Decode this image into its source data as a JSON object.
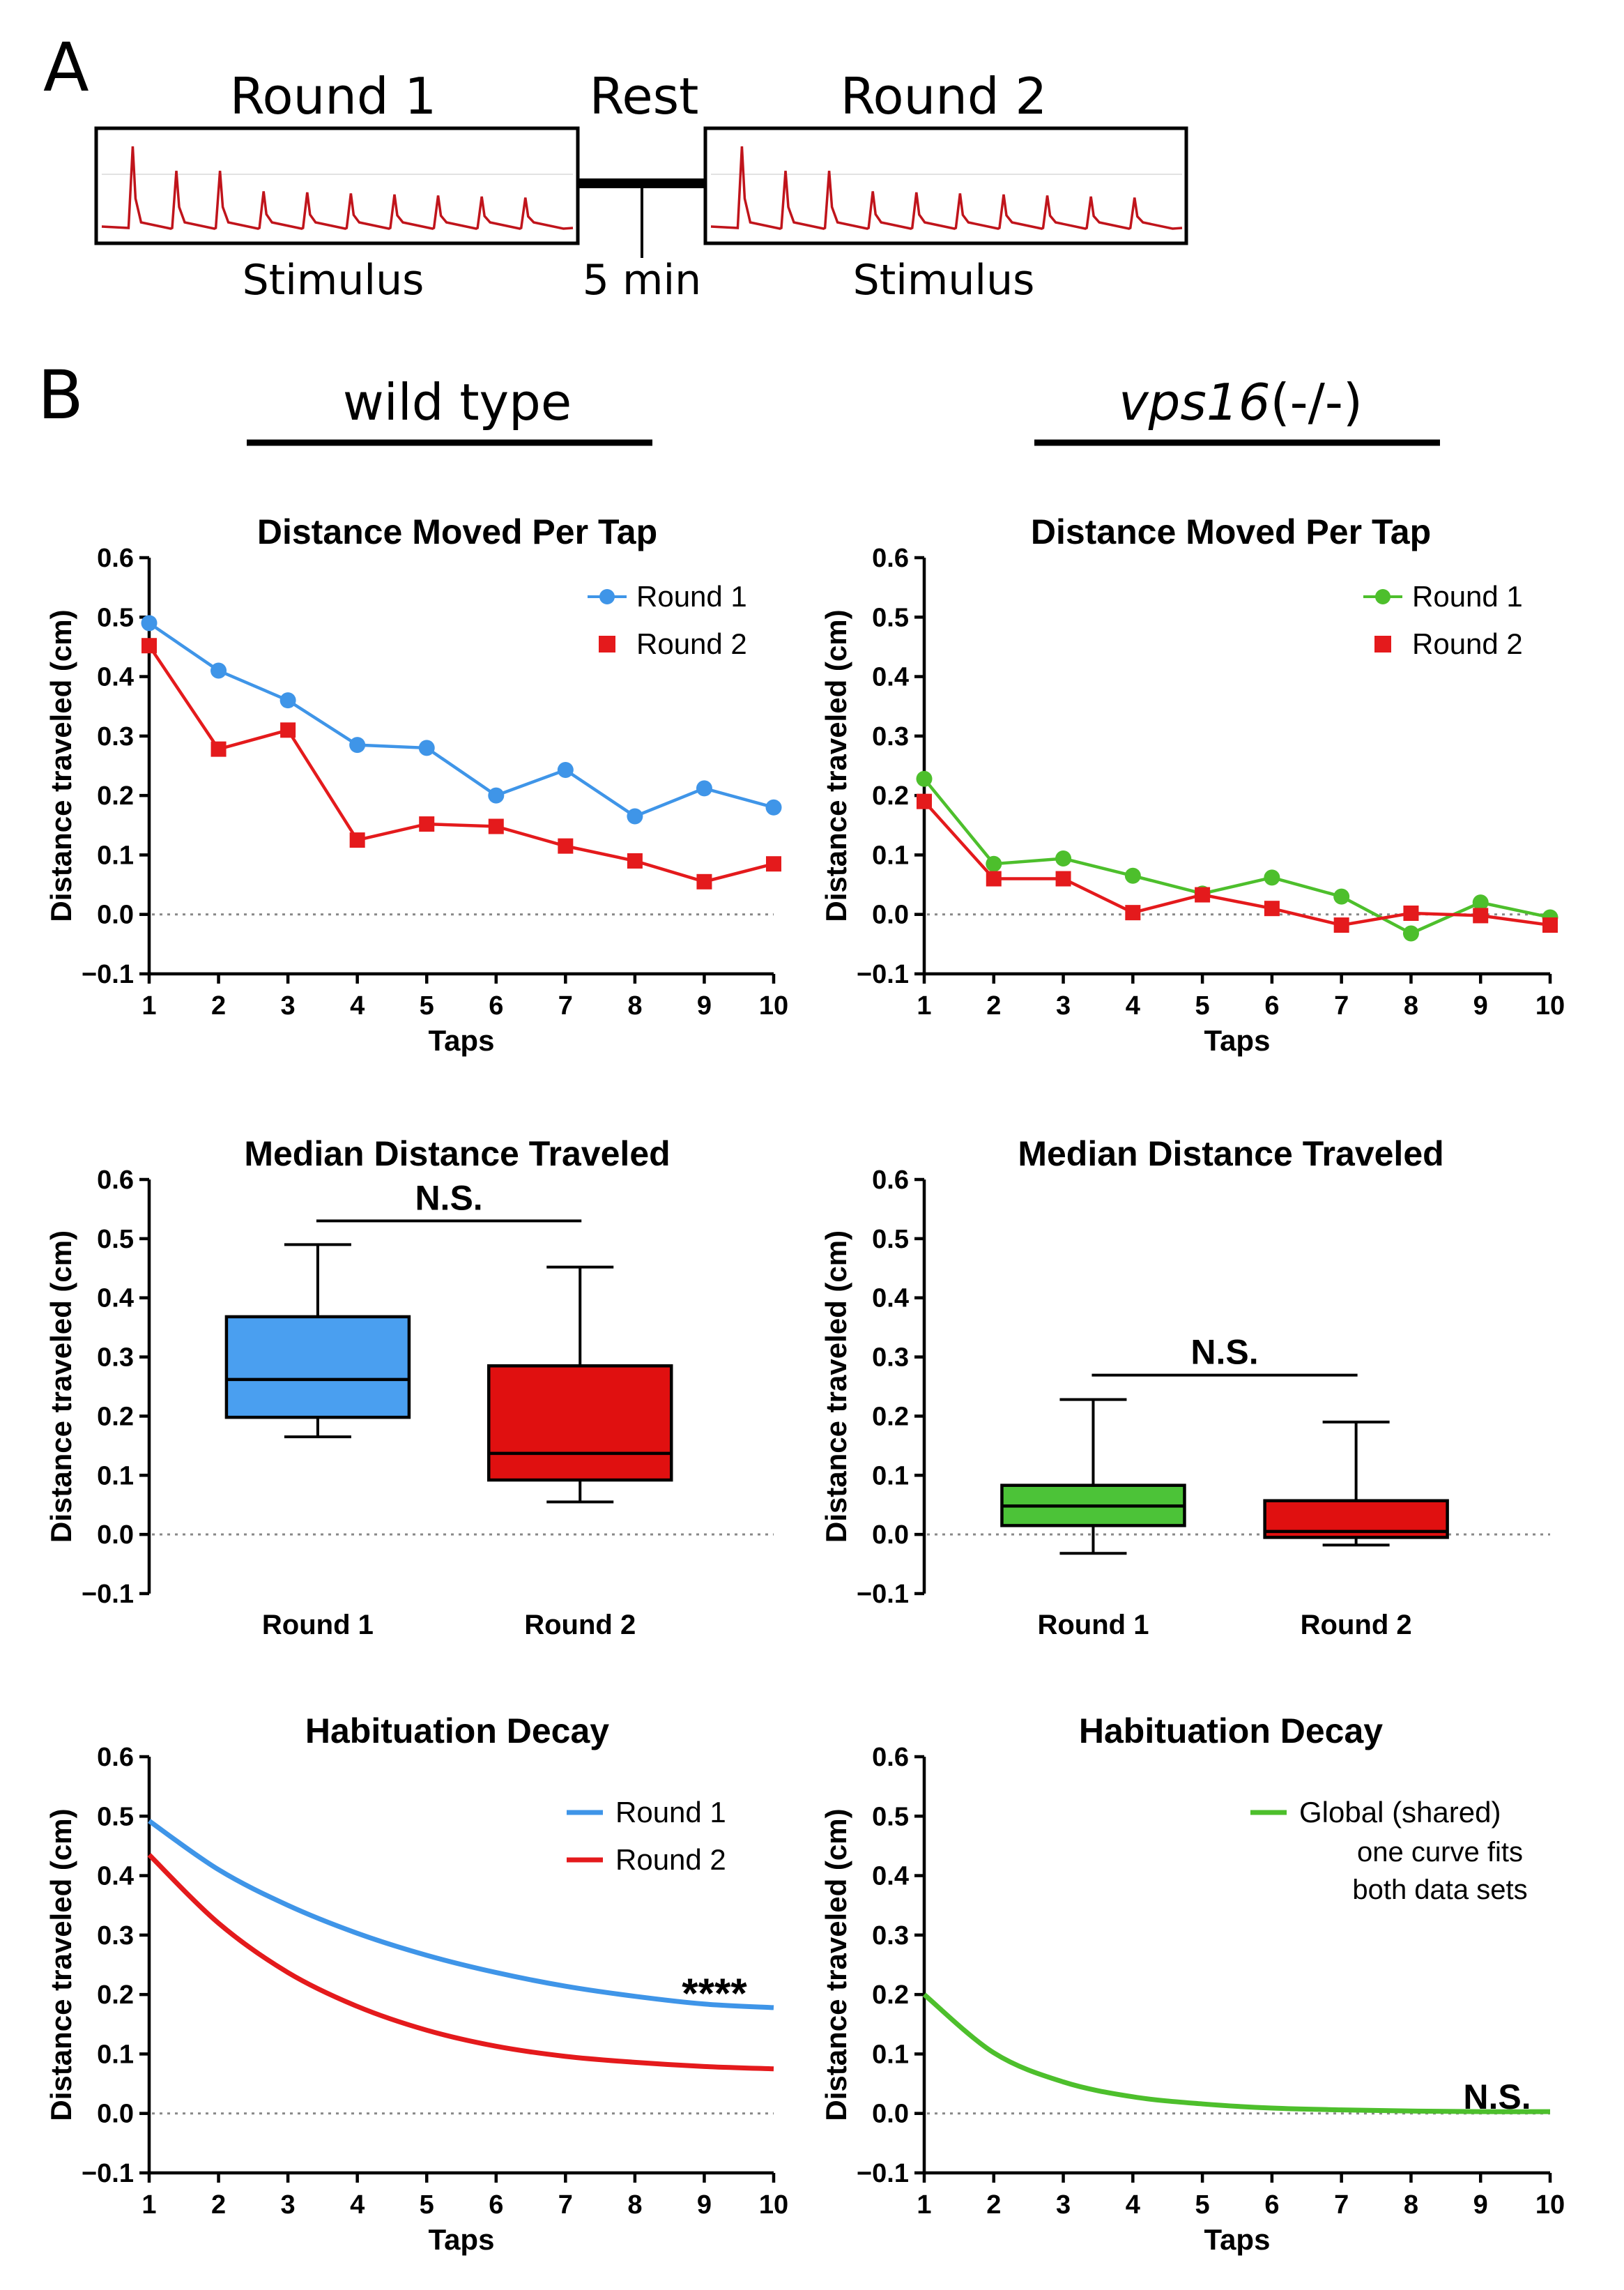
{
  "panel_a": {
    "label": "A",
    "round1_label": "Round 1",
    "rest_label": "Rest",
    "round2_label": "Round 2",
    "stimulus1_label": "Stimulus",
    "rest_duration": "5 min",
    "stimulus2_label": "Stimulus",
    "trace_color": "#c0141b"
  },
  "panel_b": {
    "label": "B",
    "left_header": "wild type",
    "right_header_gene": "vps16",
    "right_header_suffix": "(-/-)"
  },
  "colors": {
    "wt_round1": "#3f95e8",
    "round2": "#e41a1c",
    "mut_round1": "#4dbf2c",
    "box_wt_r1": "#4a9ff0",
    "box_r2": "#e01010",
    "box_mut_r1": "#4cc338"
  },
  "chart_data": [
    {
      "id": "wt_line",
      "type": "line",
      "title": "Distance Moved Per Tap",
      "xlabel": "Taps",
      "ylabel": "Distance traveled (cm)",
      "ylim": [
        -0.1,
        0.6
      ],
      "yticks": [
        "0.6",
        "0.5",
        "0.4",
        "0.3",
        "0.2",
        "0.1",
        "0.0",
        "−0.1"
      ],
      "x": [
        1,
        2,
        3,
        4,
        5,
        6,
        7,
        8,
        9,
        10
      ],
      "series": [
        {
          "name": "Round 1",
          "marker": "circle",
          "values": [
            0.49,
            0.41,
            0.36,
            0.285,
            0.28,
            0.2,
            0.243,
            0.165,
            0.212,
            0.18
          ]
        },
        {
          "name": "Round 2",
          "marker": "square",
          "values": [
            0.452,
            0.278,
            0.31,
            0.125,
            0.152,
            0.148,
            0.115,
            0.09,
            0.055,
            0.085
          ]
        }
      ],
      "legend_position": "top-right"
    },
    {
      "id": "mut_line",
      "type": "line",
      "title": "Distance Moved Per Tap",
      "xlabel": "Taps",
      "ylabel": "Distance traveled (cm)",
      "ylim": [
        -0.1,
        0.6
      ],
      "yticks": [
        "0.6",
        "0.5",
        "0.4",
        "0.3",
        "0.2",
        "0.1",
        "0.0",
        "−0.1"
      ],
      "x": [
        1,
        2,
        3,
        4,
        5,
        6,
        7,
        8,
        9,
        10
      ],
      "series": [
        {
          "name": "Round 1",
          "marker": "circle",
          "values": [
            0.228,
            0.085,
            0.094,
            0.065,
            0.035,
            0.062,
            0.03,
            -0.032,
            0.02,
            -0.005
          ]
        },
        {
          "name": "Round 2",
          "marker": "square",
          "values": [
            0.19,
            0.06,
            0.06,
            0.003,
            0.033,
            0.01,
            -0.018,
            0.002,
            -0.002,
            -0.018
          ]
        }
      ],
      "legend_position": "top-right"
    },
    {
      "id": "wt_box",
      "type": "box",
      "title": "Median Distance Traveled",
      "ylabel": "Distance traveled (cm)",
      "ylim": [
        -0.1,
        0.6
      ],
      "yticks": [
        "0.6",
        "0.5",
        "0.4",
        "0.3",
        "0.2",
        "0.1",
        "0.0",
        "−0.1"
      ],
      "categories": [
        "Round 1",
        "Round 2"
      ],
      "boxes": [
        {
          "min": 0.165,
          "q1": 0.198,
          "median": 0.262,
          "q3": 0.368,
          "max": 0.49
        },
        {
          "min": 0.055,
          "q1": 0.092,
          "median": 0.137,
          "q3": 0.285,
          "max": 0.452
        }
      ],
      "significance": "N.S."
    },
    {
      "id": "mut_box",
      "type": "box",
      "title": "Median Distance Traveled",
      "ylabel": "Distance traveled (cm)",
      "ylim": [
        -0.1,
        0.6
      ],
      "yticks": [
        "0.6",
        "0.5",
        "0.4",
        "0.3",
        "0.2",
        "0.1",
        "0.0",
        "−0.1"
      ],
      "categories": [
        "Round 1",
        "Round 2"
      ],
      "boxes": [
        {
          "min": -0.032,
          "q1": 0.015,
          "median": 0.048,
          "q3": 0.083,
          "max": 0.228
        },
        {
          "min": -0.018,
          "q1": -0.005,
          "median": 0.005,
          "q3": 0.057,
          "max": 0.19
        }
      ],
      "significance": "N.S."
    },
    {
      "id": "wt_decay",
      "type": "line",
      "title": "Habituation Decay",
      "xlabel": "Taps",
      "ylabel": "Distance traveled (cm)",
      "ylim": [
        -0.1,
        0.6
      ],
      "yticks": [
        "0.6",
        "0.5",
        "0.4",
        "0.3",
        "0.2",
        "0.1",
        "0.0",
        "−0.1"
      ],
      "x": [
        1,
        2,
        3,
        4,
        5,
        6,
        7,
        8,
        9,
        10
      ],
      "series": [
        {
          "name": "Round 1",
          "values": [
            0.492,
            0.41,
            0.35,
            0.303,
            0.266,
            0.237,
            0.214,
            0.197,
            0.184,
            0.178
          ]
        },
        {
          "name": "Round 2",
          "values": [
            0.435,
            0.32,
            0.237,
            0.18,
            0.14,
            0.113,
            0.096,
            0.086,
            0.079,
            0.075
          ]
        }
      ],
      "legend_position": "top-right",
      "significance": "****"
    },
    {
      "id": "mut_decay",
      "type": "line",
      "title": "Habituation Decay",
      "xlabel": "Taps",
      "ylabel": "Distance traveled (cm)",
      "ylim": [
        -0.1,
        0.6
      ],
      "yticks": [
        "0.6",
        "0.5",
        "0.4",
        "0.3",
        "0.2",
        "0.1",
        "0.0",
        "−0.1"
      ],
      "x": [
        1,
        2,
        3,
        4,
        5,
        6,
        7,
        8,
        9,
        10
      ],
      "series": [
        {
          "name": "Global (shared)",
          "values": [
            0.2,
            0.102,
            0.053,
            0.028,
            0.016,
            0.009,
            0.006,
            0.004,
            0.003,
            0.003
          ]
        }
      ],
      "legend_note_line1": "one curve fits",
      "legend_note_line2": "both data sets",
      "legend_position": "top-right",
      "significance": "N.S."
    }
  ]
}
